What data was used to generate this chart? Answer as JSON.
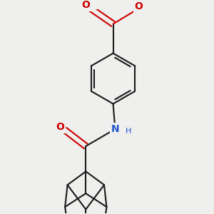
{
  "background_color": "#efefed",
  "bond_color": "#1a1a1a",
  "oxygen_color": "#cc0000",
  "nitrogen_color": "#2255cc",
  "line_width": 1.5,
  "figsize": [
    3.0,
    3.0
  ],
  "dpi": 100,
  "xlim": [
    -1.8,
    1.8
  ],
  "ylim": [
    -2.8,
    2.2
  ]
}
